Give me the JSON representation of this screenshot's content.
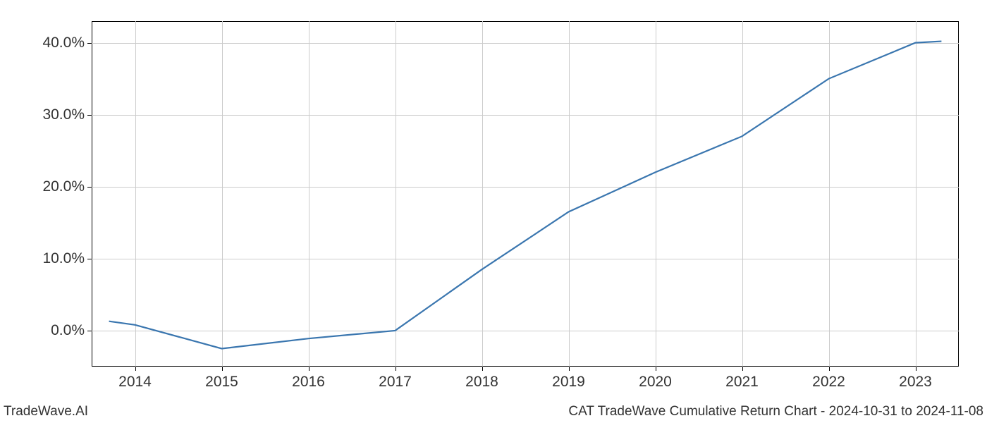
{
  "chart": {
    "type": "line",
    "x_values": [
      2013.7,
      2014,
      2015,
      2016,
      2017,
      2018,
      2019,
      2020,
      2021,
      2022,
      2023,
      2023.3
    ],
    "y_values": [
      1.3,
      0.8,
      -2.5,
      -1.1,
      0.0,
      8.5,
      16.5,
      22.0,
      27.0,
      35.0,
      40.0,
      40.2
    ],
    "x_ticks": [
      2014,
      2015,
      2016,
      2017,
      2018,
      2019,
      2020,
      2021,
      2022,
      2023
    ],
    "x_tick_labels": [
      "2014",
      "2015",
      "2016",
      "2017",
      "2018",
      "2019",
      "2020",
      "2021",
      "2022",
      "2023"
    ],
    "y_ticks": [
      0,
      10,
      20,
      30,
      40
    ],
    "y_tick_labels": [
      "0.0%",
      "10.0%",
      "20.0%",
      "30.0%",
      "40.0%"
    ],
    "xlim": [
      2013.5,
      2023.5
    ],
    "ylim": [
      -5,
      43
    ],
    "line_color": "#3a76af",
    "line_width": 2.2,
    "grid_color": "#cccccc",
    "background_color": "#ffffff",
    "axis_color": "#000000",
    "tick_fontsize": 21,
    "footer_fontsize": 19,
    "text_color": "#333333"
  },
  "footer": {
    "left": "TradeWave.AI",
    "right": "CAT TradeWave Cumulative Return Chart - 2024-10-31 to 2024-11-08"
  }
}
